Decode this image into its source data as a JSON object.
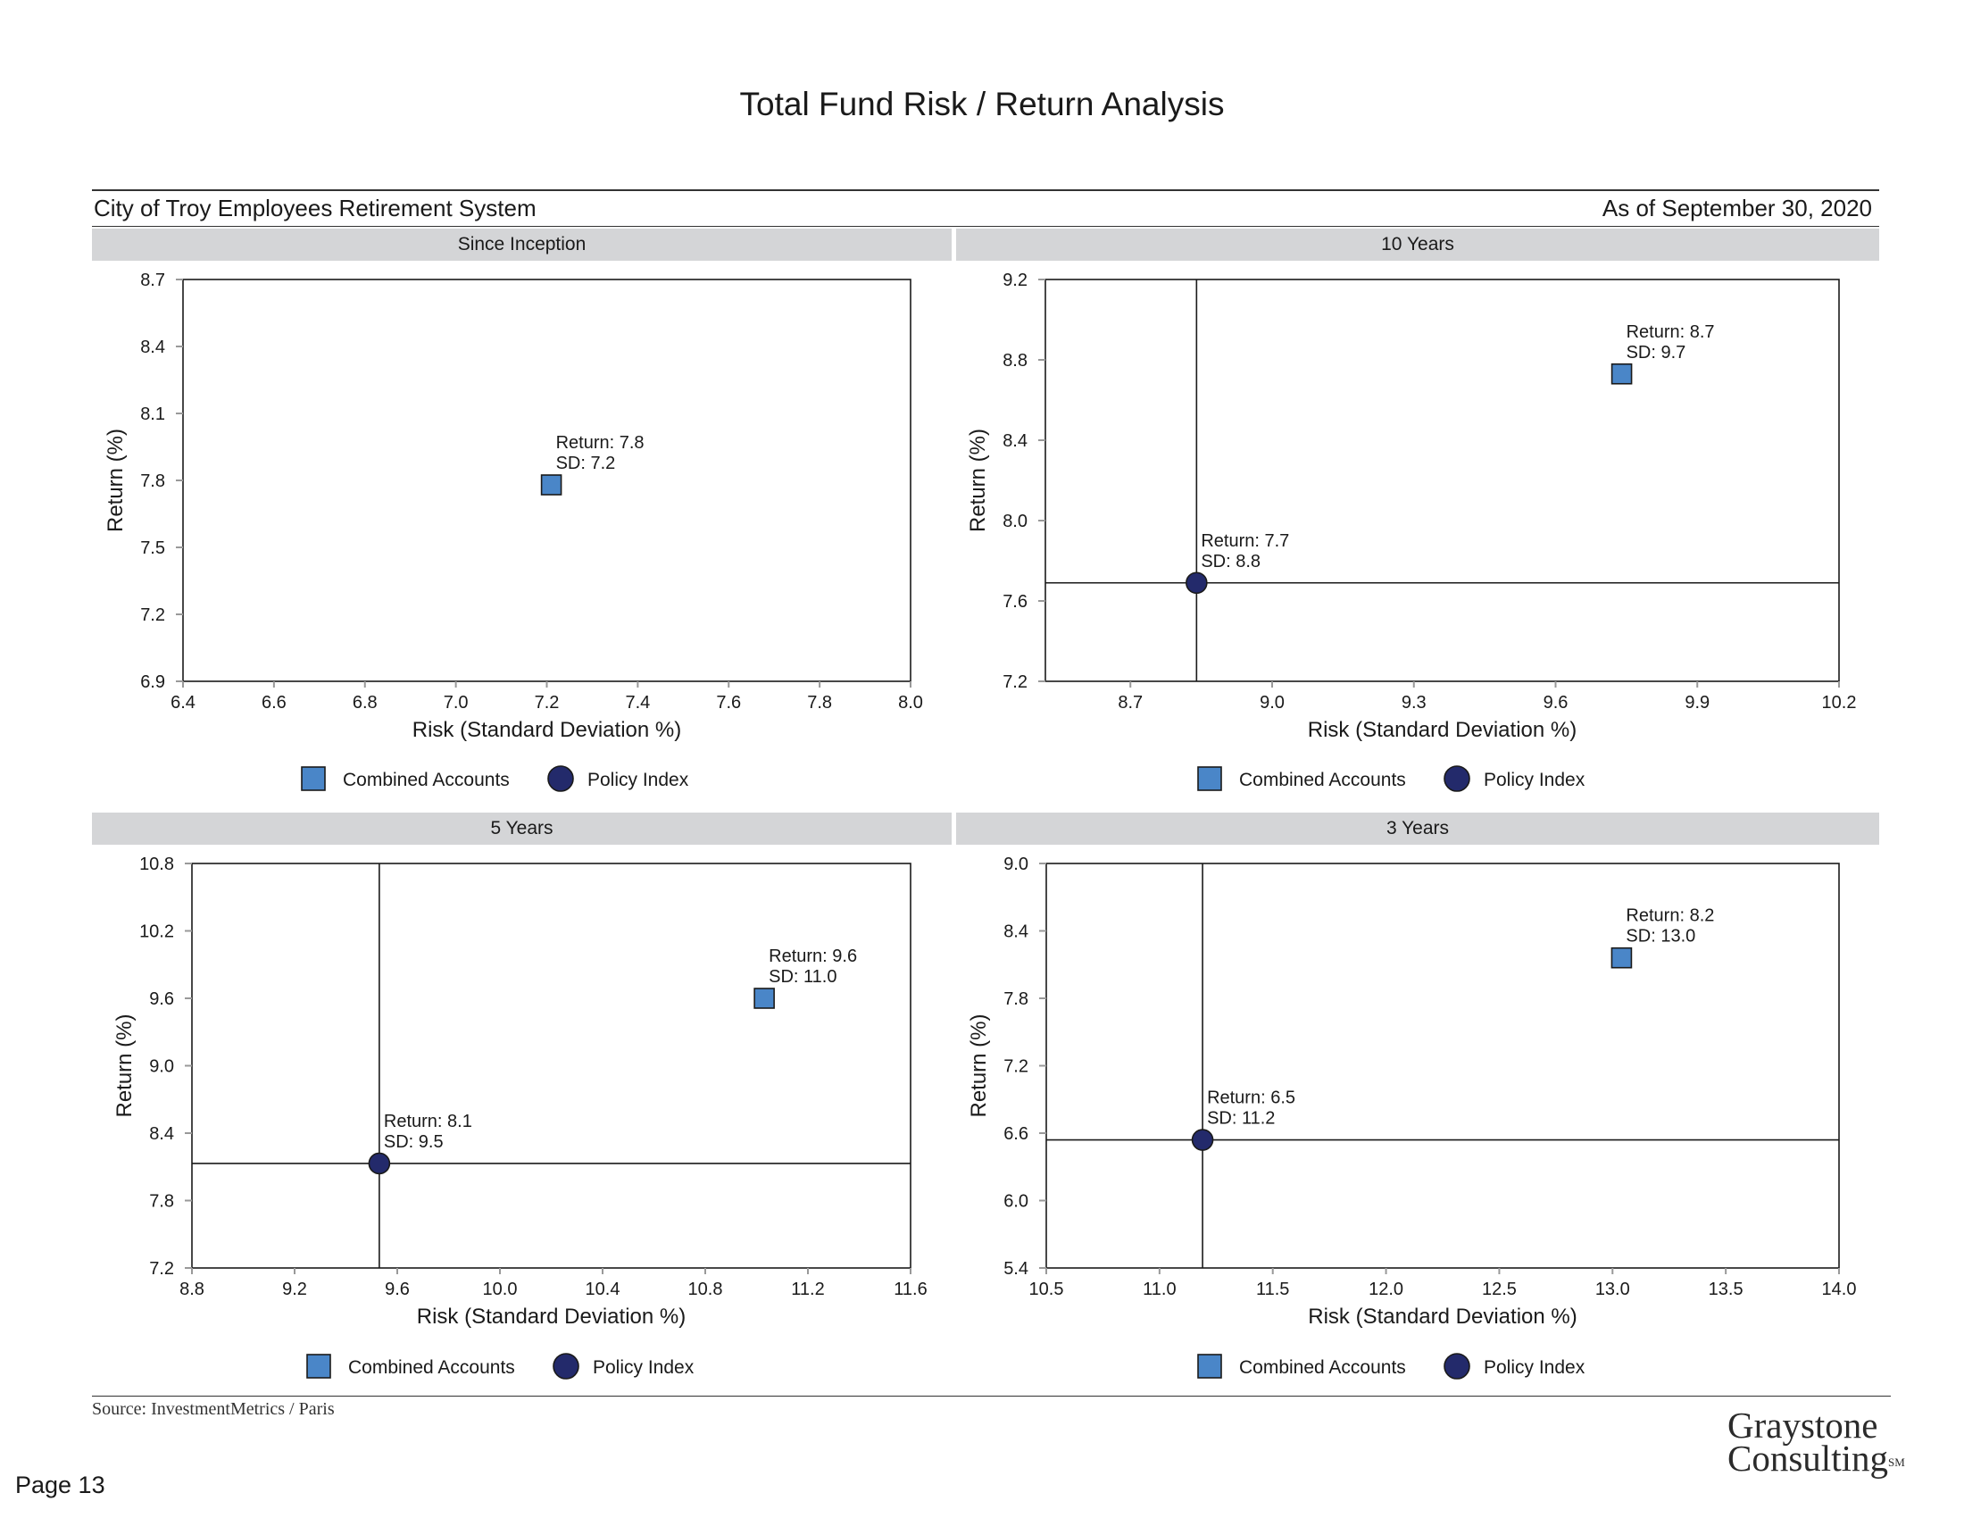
{
  "page": {
    "title": "Total Fund Risk / Return Analysis",
    "organization": "City of Troy Employees Retirement System",
    "as_of": "As of September 30, 2020",
    "source": "Source: InvestmentMetrics / Paris",
    "page_number": "Page 13",
    "logo_line1": "Graystone",
    "logo_line2": "Consulting",
    "logo_mark": "SM"
  },
  "colors": {
    "combined_accounts": "#4a86c8",
    "policy_index": "#232a6b",
    "panel_header": "#d4d5d7"
  },
  "chart_data": [
    {
      "type": "scatter",
      "title": "Since Inception",
      "xlabel": "Risk (Standard Deviation %)",
      "ylabel": "Return (%)",
      "xlim": [
        6.4,
        8.0
      ],
      "ylim": [
        6.9,
        8.7
      ],
      "xticks": [
        "6.4",
        "6.6",
        "6.8",
        "7.0",
        "7.2",
        "7.4",
        "7.6",
        "7.8",
        "8.0"
      ],
      "yticks": [
        "6.9",
        "7.2",
        "7.5",
        "7.8",
        "8.1",
        "8.4",
        "8.7"
      ],
      "legend": [
        "Combined Accounts",
        "Policy Index"
      ],
      "crosshair": false,
      "points": [
        {
          "series": "Combined Accounts",
          "shape": "square",
          "x": 7.21,
          "y": 7.78,
          "label1": "Return: 7.8",
          "label2": "SD: 7.2"
        }
      ]
    },
    {
      "type": "scatter",
      "title": "10 Years",
      "xlabel": "Risk (Standard Deviation %)",
      "ylabel": "Return (%)",
      "xlim": [
        8.52,
        10.2
      ],
      "ylim": [
        7.2,
        9.2
      ],
      "xticks": [
        "8.7",
        "9.0",
        "9.3",
        "9.6",
        "9.9",
        "10.2"
      ],
      "yticks": [
        "7.2",
        "7.6",
        "8.0",
        "8.4",
        "8.8",
        "9.2"
      ],
      "legend": [
        "Combined Accounts",
        "Policy Index"
      ],
      "crosshair": true,
      "points": [
        {
          "series": "Combined Accounts",
          "shape": "square",
          "x": 9.74,
          "y": 8.73,
          "label1": "Return: 8.7",
          "label2": "SD: 9.7"
        },
        {
          "series": "Policy Index",
          "shape": "circle",
          "x": 8.84,
          "y": 7.69,
          "label1": "Return: 7.7",
          "label2": "SD: 8.8"
        }
      ]
    },
    {
      "type": "scatter",
      "title": "5 Years",
      "xlabel": "Risk (Standard Deviation %)",
      "ylabel": "Return (%)",
      "xlim": [
        8.8,
        11.6
      ],
      "ylim": [
        7.2,
        10.8
      ],
      "xticks": [
        "8.8",
        "9.2",
        "9.6",
        "10.0",
        "10.4",
        "10.8",
        "11.2",
        "11.6"
      ],
      "yticks": [
        "7.2",
        "7.8",
        "8.4",
        "9.0",
        "9.6",
        "10.2",
        "10.8"
      ],
      "legend": [
        "Combined Accounts",
        "Policy Index"
      ],
      "crosshair": true,
      "points": [
        {
          "series": "Combined Accounts",
          "shape": "square",
          "x": 11.03,
          "y": 9.6,
          "label1": "Return: 9.6",
          "label2": "SD: 11.0"
        },
        {
          "series": "Policy Index",
          "shape": "circle",
          "x": 9.53,
          "y": 8.13,
          "label1": "Return: 8.1",
          "label2": "SD: 9.5"
        }
      ]
    },
    {
      "type": "scatter",
      "title": "3 Years",
      "xlabel": "Risk (Standard Deviation %)",
      "ylabel": "Return (%)",
      "xlim": [
        10.5,
        14.0
      ],
      "ylim": [
        5.4,
        9.0
      ],
      "xticks": [
        "10.5",
        "11.0",
        "11.5",
        "12.0",
        "12.5",
        "13.0",
        "13.5",
        "14.0"
      ],
      "yticks": [
        "5.4",
        "6.0",
        "6.6",
        "7.2",
        "7.8",
        "8.4",
        "9.0"
      ],
      "legend": [
        "Combined Accounts",
        "Policy Index"
      ],
      "crosshair": true,
      "points": [
        {
          "series": "Combined Accounts",
          "shape": "square",
          "x": 13.04,
          "y": 8.16,
          "label1": "Return: 8.2",
          "label2": "SD: 13.0"
        },
        {
          "series": "Policy Index",
          "shape": "circle",
          "x": 11.19,
          "y": 6.54,
          "label1": "Return: 6.5",
          "label2": "SD: 11.2"
        }
      ]
    }
  ]
}
